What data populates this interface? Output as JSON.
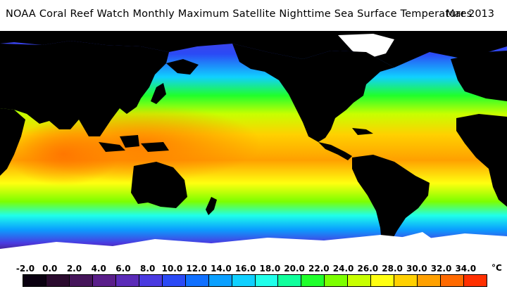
{
  "title": "NOAA Coral Reef Watch Monthly Maximum Satellite Nighttime Sea Surface Temperatures",
  "date": "Mar 2013",
  "legend": {
    "unit": "°C",
    "ticks": [
      "-2.0",
      "0.0",
      "2.0",
      "4.0",
      "6.0",
      "8.0",
      "10.0",
      "12.0",
      "14.0",
      "16.0",
      "18.0",
      "20.0",
      "22.0",
      "24.0",
      "26.0",
      "28.0",
      "30.0",
      "32.0",
      "34.0"
    ],
    "colors": [
      "#0a0010",
      "#2a0a2e",
      "#45155a",
      "#5a1e8a",
      "#5b2bb8",
      "#4a3ae0",
      "#2b4af5",
      "#1070ff",
      "#0aa0ff",
      "#10d0ff",
      "#20ffea",
      "#10ff9c",
      "#20ff2c",
      "#7cff00",
      "#c8ff00",
      "#ffff10",
      "#ffd000",
      "#ffa000",
      "#ff6a00",
      "#ff3000"
    ]
  },
  "colors": {
    "land": "#000000",
    "ice": "#ffffff",
    "background": "#ffffff"
  }
}
